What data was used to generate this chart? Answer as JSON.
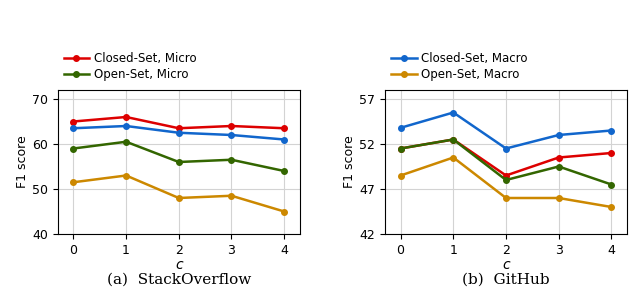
{
  "x": [
    0,
    1,
    2,
    3,
    4
  ],
  "subplot_a": {
    "title": "(a)  StackOverflow",
    "ylabel": "F1 score",
    "xlabel": "c",
    "ylim": [
      40,
      72
    ],
    "yticks": [
      40,
      50,
      60,
      70
    ],
    "series": [
      {
        "label": "Closed-Set, Micro",
        "color": "#dd0000",
        "values": [
          65.0,
          66.0,
          63.5,
          64.0,
          63.5
        ]
      },
      {
        "label": "Open-Set, Micro",
        "color": "#336600",
        "values": [
          59.0,
          60.5,
          56.0,
          56.5,
          54.0
        ]
      },
      {
        "label": "Closed-Set, Macro",
        "color": "#1166cc",
        "values": [
          63.5,
          64.0,
          62.5,
          62.0,
          61.0
        ]
      },
      {
        "label": "Open-Set, Macro",
        "color": "#cc8800",
        "values": [
          51.5,
          53.0,
          48.0,
          48.5,
          45.0
        ]
      }
    ]
  },
  "subplot_b": {
    "title": "(b)  GitHub",
    "ylabel": "F1 score",
    "xlabel": "c",
    "ylim": [
      42,
      58
    ],
    "yticks": [
      42,
      47,
      52,
      57
    ],
    "series": [
      {
        "label": "Closed-Set, Macro",
        "color": "#1166cc",
        "values": [
          53.8,
          55.5,
          51.5,
          53.0,
          53.5
        ]
      },
      {
        "label": "Open-Set, Macro",
        "color": "#cc8800",
        "values": [
          48.5,
          50.5,
          46.0,
          46.0,
          45.0
        ]
      },
      {
        "label": "Closed-Set, Micro",
        "color": "#dd0000",
        "values": [
          51.5,
          52.5,
          48.5,
          50.5,
          51.0
        ]
      },
      {
        "label": "Open-Set, Micro",
        "color": "#336600",
        "values": [
          51.5,
          52.5,
          48.0,
          49.5,
          47.5
        ]
      }
    ]
  },
  "legend_a_series": [
    "Closed-Set, Micro",
    "Open-Set, Micro"
  ],
  "legend_b_series": [
    "Closed-Set, Macro",
    "Open-Set, Macro"
  ],
  "marker": "o",
  "markersize": 4,
  "linewidth": 1.8,
  "legend_fontsize": 8.5,
  "tick_fontsize": 9,
  "ylabel_fontsize": 9,
  "xlabel_fontsize": 10,
  "caption_fontsize": 11
}
